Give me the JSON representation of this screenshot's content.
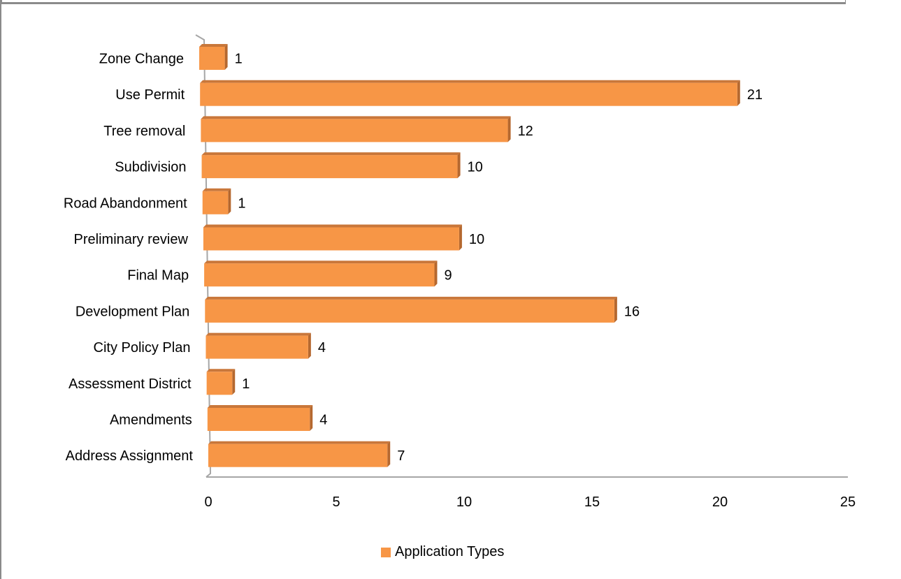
{
  "chart_data": {
    "type": "bar",
    "orientation": "horizontal",
    "categories": [
      "Zone Change",
      "Use Permit",
      "Tree removal",
      "Subdivision",
      "Road Abandonment",
      "Preliminary review",
      "Final Map",
      "Development Plan",
      "City Policy Plan",
      "Assessment District",
      "Amendments",
      "Address Assignment"
    ],
    "series": [
      {
        "name": "Application Types",
        "values": [
          1,
          21,
          12,
          10,
          1,
          10,
          9,
          16,
          4,
          1,
          4,
          7
        ],
        "color": "#f79646"
      }
    ],
    "xlim": [
      0,
      25
    ],
    "xticks": [
      "0",
      "5",
      "10",
      "15",
      "20",
      "25"
    ],
    "grid": false,
    "legend_position": "bottom",
    "style": "3d"
  }
}
